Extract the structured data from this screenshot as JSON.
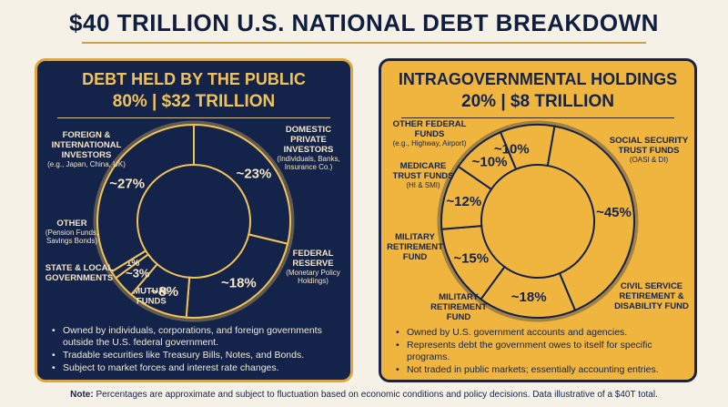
{
  "title": "$40 TRILLION U.S. NATIONAL DEBT BREAKDOWN",
  "left_panel": {
    "title": "DEBT HELD BY THE PUBLIC",
    "subtitle": "80% | $32 TRILLION",
    "labels": {
      "foreign": {
        "title": "FOREIGN & INTERNATIONAL INVESTORS",
        "sub": "(e.g., Japan, China, UK)"
      },
      "domestic": {
        "title": "DOMESTIC PRIVATE INVESTORS",
        "sub": "(Individuals, Banks, Insurance Co.)"
      },
      "federal": {
        "title": "FEDERAL RESERVE",
        "sub": "(Monetary Policy Holdings)"
      },
      "other": {
        "title": "OTHER",
        "sub": "(Pension Funds, Savings Bonds)"
      },
      "state": {
        "title": "STATE & LOCAL GOVERNMENTS"
      }
    },
    "bullets": [
      "Owned by individuals, corporations, and foreign governments outside the U.S. federal government.",
      "Tradable securities like Treasury Bills, Notes, and Bonds.",
      "Subject to market forces and interest rate changes."
    ]
  },
  "right_panel": {
    "title": "INTRAGOVERNMENTAL HOLDINGS",
    "subtitle": "20% | $8 TRILLION",
    "labels": {
      "other_federal": {
        "title": "OTHER FEDERAL FUNDS",
        "sub": "(e.g., Highway, Airport)"
      },
      "social_security": {
        "title": "SOCIAL SECURITY TRUST FUNDS",
        "sub": "(OASI & DI)"
      },
      "medicare": {
        "title": "MEDICARE TRUST FUNDS",
        "sub": "(HI & SMI)"
      },
      "military_upper": {
        "title": "MILITARY RETIREMENT FUND"
      },
      "military_lower": {
        "title": "MILITARY RETIREMENT FUND"
      },
      "civil_service": {
        "title": "CIVIL SERVICE RETIREMENT & DISABILITY FUND"
      }
    },
    "bullets": [
      "Owned by U.S. government accounts and agencies.",
      "Represents debt the government owes to itself for specific programs.",
      "Not traded in public markets; essentially accounting entries."
    ]
  },
  "note_label": "Note:",
  "note_text": " Percentages are approximate and subject to fluctuation based on economic conditions and policy decisions. Data illustrative of a $40T total.",
  "chart_data": [
    {
      "type": "pie",
      "title": "DEBT HELD BY THE PUBLIC",
      "subtitle": "80% | $32 TRILLION",
      "categories": [
        "Domestic Private Investors",
        "Federal Reserve",
        "Mutual Funds",
        "State & Local Governments",
        "Other",
        "Foreign & International Investors"
      ],
      "values": [
        23,
        18,
        8,
        3,
        1,
        27
      ],
      "value_labels": [
        "~23%",
        "~18%",
        "~8%",
        "~3%",
        "~1%",
        "~27%"
      ],
      "segment_labels": {
        "mutual_funds": "MUTUAL FUNDS"
      },
      "colors": {
        "fill": "#13234a",
        "stroke": "#f2c25a",
        "text": "#f4e6c4"
      }
    },
    {
      "type": "pie",
      "title": "INTRAGOVERNMENTAL HOLDINGS",
      "subtitle": "20% | $8 TRILLION",
      "categories": [
        "Social Security Trust Funds",
        "Civil Service Retirement & Disability Fund",
        "Military Retirement Fund",
        "Military Retirement Fund",
        "Medicare Trust Funds",
        "Other Federal Funds"
      ],
      "values": [
        45,
        18,
        15,
        12,
        10,
        10
      ],
      "value_labels": [
        "~45%",
        "~18%",
        "~15%",
        "~12%",
        "~10%",
        ""
      ],
      "colors": {
        "fill": "#f0b53f",
        "stroke": "#13234a",
        "text": "#13234a"
      }
    }
  ]
}
